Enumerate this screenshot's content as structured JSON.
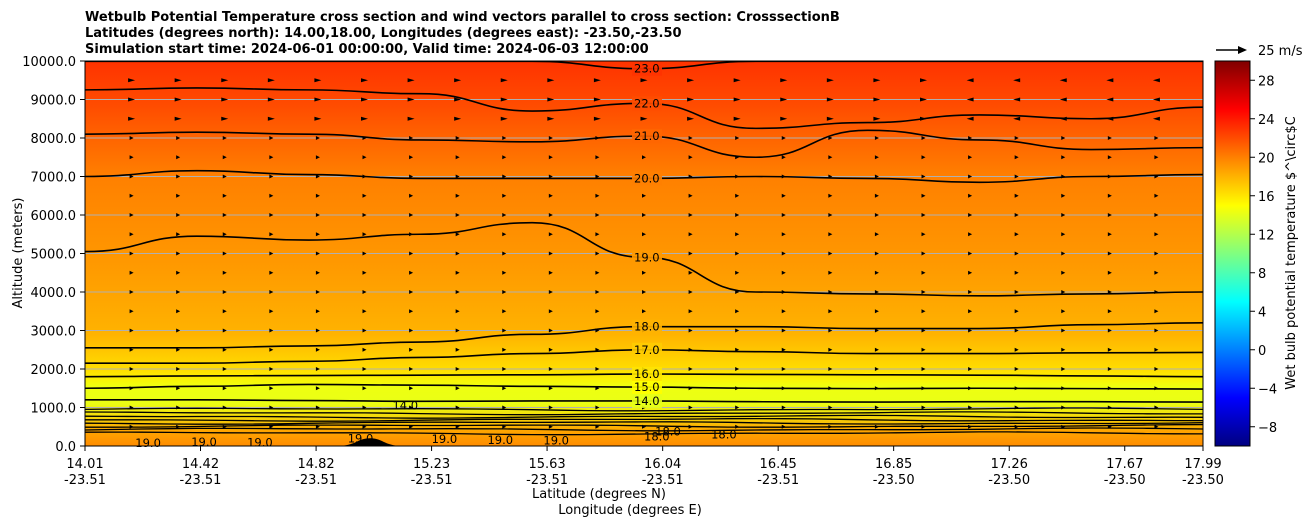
{
  "chart_data": {
    "type": "contourf",
    "title": [
      "Wetbulb Potential Temperature cross section and wind vectors parallel to cross section: CrosssectionB",
      "Latitudes (degrees north): 14.00,18.00, Longitudes (degrees east): -23.50,-23.50",
      "Simulation start time: 2024-06-01 00:00:00, Valid time: 2024-06-03 12:00:00"
    ],
    "xlabel_lat": "Latitude (degrees N)",
    "xlabel_lon": "Longitude (degrees E)",
    "ylabel": "Altitude (meters)",
    "ylim": [
      0,
      10000
    ],
    "yticks": [
      0,
      1000,
      2000,
      3000,
      4000,
      5000,
      6000,
      7000,
      8000,
      9000,
      10000
    ],
    "ytick_labels": [
      "0.0",
      "1000.0",
      "2000.0",
      "3000.0",
      "4000.0",
      "5000.0",
      "6000.0",
      "7000.0",
      "8000.0",
      "9000.0",
      "10000.0"
    ],
    "xticks_lat": [
      "14.01",
      "14.42",
      "14.82",
      "15.23",
      "15.63",
      "16.04",
      "16.45",
      "16.85",
      "17.26",
      "17.67",
      "17.99"
    ],
    "xticks_lon": [
      "-23.51",
      "-23.51",
      "-23.51",
      "-23.51",
      "-23.51",
      "-23.51",
      "-23.51",
      "-23.50",
      "-23.50",
      "-23.50",
      "-23.50"
    ],
    "x_fraction": [
      0,
      0.1033,
      0.2067,
      0.31,
      0.4133,
      0.5167,
      0.62,
      0.7233,
      0.8267,
      0.93,
      1.0
    ],
    "colorbar": {
      "label": "Wet bulb potential temperature $^\\circ$C",
      "vmin": -10,
      "vmax": 30,
      "ticks": [
        -8,
        -4,
        0,
        4,
        8,
        12,
        16,
        20,
        24,
        28
      ],
      "tick_labels": [
        "−8",
        "−4",
        "0",
        "4",
        "8",
        "12",
        "16",
        "20",
        "24",
        "28"
      ]
    },
    "quiver_key": "25 m/s",
    "contours": [
      {
        "level": 14.0,
        "label": "14.0",
        "alt": [
          1200,
          1200,
          1180,
          1160,
          1170,
          1170,
          1150,
          1140,
          1150,
          1150,
          1140
        ]
      },
      {
        "level": 15.0,
        "label": "15.0",
        "alt": [
          1500,
          1550,
          1600,
          1580,
          1550,
          1530,
          1500,
          1490,
          1500,
          1490,
          1480
        ]
      },
      {
        "level": 16.0,
        "label": "16.0",
        "alt": [
          1800,
          1820,
          1830,
          1840,
          1850,
          1870,
          1860,
          1850,
          1840,
          1820,
          1800
        ]
      },
      {
        "level": 17.0,
        "label": "17.0",
        "alt": [
          2150,
          2150,
          2200,
          2300,
          2400,
          2500,
          2450,
          2400,
          2400,
          2420,
          2430
        ]
      },
      {
        "level": 18.0,
        "label": "18.0",
        "alt": [
          2550,
          2550,
          2600,
          2700,
          2900,
          3100,
          3100,
          3050,
          3050,
          3150,
          3200
        ]
      },
      {
        "level": 19.0,
        "label": "19.0",
        "alt": [
          5050,
          5450,
          5350,
          5500,
          5800,
          4900,
          4000,
          3950,
          3900,
          3950,
          4000
        ]
      },
      {
        "level": 20.0,
        "label": "20.0",
        "alt": [
          7000,
          7150,
          7050,
          6950,
          6950,
          6950,
          7000,
          6950,
          6850,
          7000,
          7050
        ]
      },
      {
        "level": 21.0,
        "label": "21.0",
        "alt": [
          8100,
          8150,
          8100,
          7950,
          7900,
          8050,
          7500,
          8200,
          7950,
          7700,
          7750
        ]
      },
      {
        "level": 22.0,
        "label": "22.0",
        "alt": [
          9250,
          9300,
          9250,
          9150,
          8700,
          8900,
          8250,
          8400,
          8600,
          8500,
          8800
        ]
      },
      {
        "level": 23.0,
        "label": "23.0",
        "alt": [
          10000,
          10000,
          10000,
          10000,
          10000,
          9800,
          10000,
          10000,
          10000,
          10000,
          10000
        ]
      }
    ],
    "lower_labels": [
      "19.0",
      "19.0",
      "19.0",
      "19.0",
      "19.0",
      "19.0",
      "19.0",
      "18.0",
      "18.0",
      "18.0",
      "14.0"
    ],
    "terrain": {
      "center_fraction": 0.255,
      "width_fraction": 0.06,
      "peak_alt": 200
    }
  }
}
